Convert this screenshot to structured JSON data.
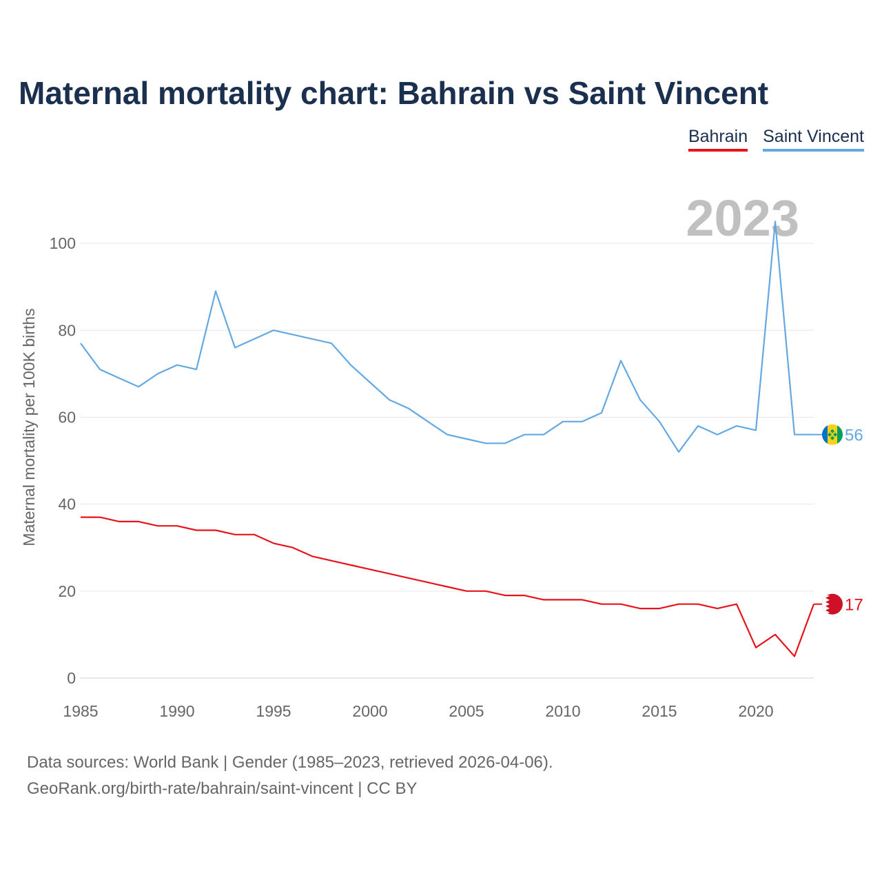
{
  "title": "Maternal mortality chart: Bahrain vs Saint Vincent",
  "legend": [
    {
      "label": "Bahrain",
      "color": "#e8121b"
    },
    {
      "label": "Saint Vincent",
      "color": "#63a8e3"
    }
  ],
  "chart_data": {
    "type": "line",
    "ylabel": "Maternal mortality per 100K births",
    "xlabel": "",
    "year_label": "2023",
    "xlim": [
      1985,
      2023
    ],
    "ylim": [
      0,
      110
    ],
    "x_ticks": [
      1985,
      1990,
      1995,
      2000,
      2005,
      2010,
      2015,
      2020
    ],
    "y_ticks": [
      0,
      20,
      40,
      60,
      80,
      100
    ],
    "x": [
      1985,
      1986,
      1987,
      1988,
      1989,
      1990,
      1991,
      1992,
      1993,
      1994,
      1995,
      1996,
      1997,
      1998,
      1999,
      2000,
      2001,
      2002,
      2003,
      2004,
      2005,
      2006,
      2007,
      2008,
      2009,
      2010,
      2011,
      2012,
      2013,
      2014,
      2015,
      2016,
      2017,
      2018,
      2019,
      2020,
      2021,
      2022,
      2023
    ],
    "series": [
      {
        "name": "Bahrain",
        "color": "#e8121b",
        "end_label": "17",
        "flag": "bahrain-flag",
        "values": [
          37,
          37,
          36,
          36,
          35,
          35,
          34,
          34,
          33,
          33,
          31,
          30,
          28,
          27,
          26,
          25,
          24,
          23,
          22,
          21,
          20,
          20,
          19,
          19,
          18,
          18,
          18,
          17,
          17,
          16,
          16,
          17,
          17,
          16,
          17,
          7,
          10,
          5,
          17
        ]
      },
      {
        "name": "Saint Vincent",
        "color": "#63a8e3",
        "end_label": "56",
        "flag": "saint-vincent-flag",
        "values": [
          77,
          71,
          69,
          67,
          70,
          72,
          71,
          89,
          76,
          78,
          80,
          79,
          78,
          77,
          72,
          68,
          64,
          62,
          59,
          56,
          55,
          54,
          54,
          56,
          56,
          59,
          59,
          61,
          73,
          64,
          59,
          52,
          58,
          56,
          58,
          57,
          105,
          56,
          56
        ]
      }
    ]
  },
  "footer": {
    "line1": "Data sources: World Bank | Gender (1985–2023, retrieved 2026-04-06).",
    "line2": "GeoRank.org/birth-rate/bahrain/saint-vincent | CC BY"
  }
}
